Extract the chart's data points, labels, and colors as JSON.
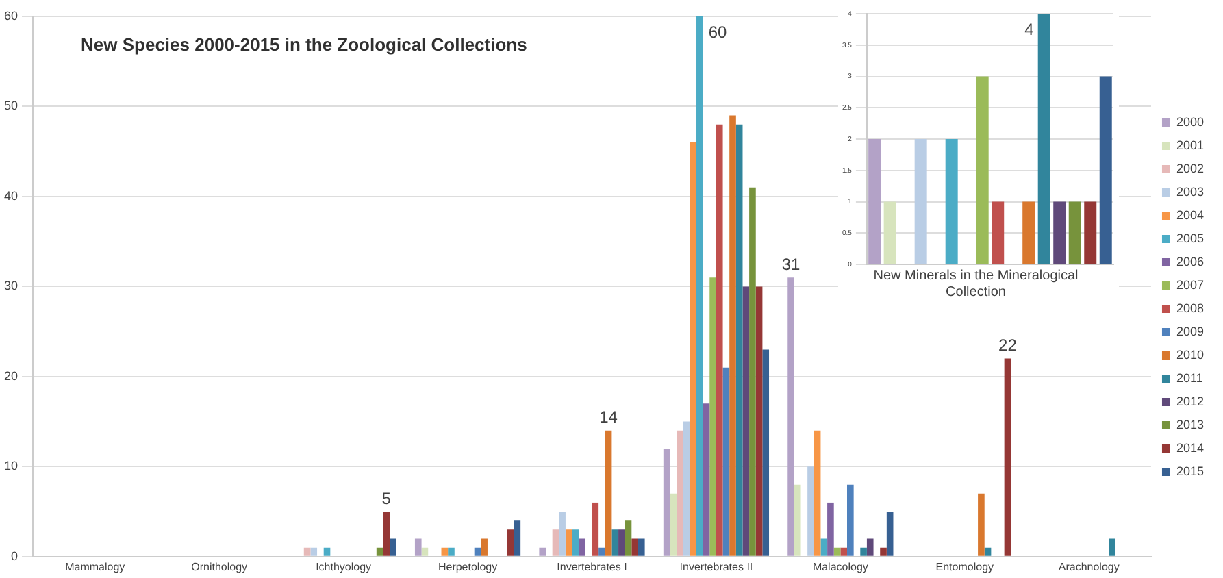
{
  "chart_data": [
    {
      "type": "bar",
      "title": "New Species 2000-2015 in the Zoological Collections",
      "categories": [
        "Mammalogy",
        "Ornithology",
        "Ichthyology",
        "Herpetology",
        "Invertebrates I",
        "Invertebrates II",
        "Malacology",
        "Entomology",
        "Arachnology"
      ],
      "series": [
        {
          "name": "2000",
          "color": "#b3a2c7",
          "values": [
            0,
            0,
            0,
            2,
            1,
            12,
            31,
            0,
            0
          ],
          "value_labels": [
            null,
            null,
            null,
            null,
            null,
            null,
            "31",
            null,
            null
          ]
        },
        {
          "name": "2001",
          "color": "#d7e4bd",
          "values": [
            0,
            0,
            0,
            1,
            0,
            7,
            8,
            0,
            0
          ]
        },
        {
          "name": "2002",
          "color": "#e6b9b8",
          "values": [
            0,
            0,
            1,
            0,
            3,
            14,
            0,
            0,
            0
          ]
        },
        {
          "name": "2003",
          "color": "#b9cde5",
          "values": [
            0,
            0,
            1,
            0,
            5,
            15,
            10,
            0,
            0
          ]
        },
        {
          "name": "2004",
          "color": "#f79646",
          "values": [
            0,
            0,
            0,
            1,
            3,
            46,
            14,
            0,
            0
          ]
        },
        {
          "name": "2005",
          "color": "#4bacc6",
          "values": [
            0,
            0,
            1,
            1,
            3,
            60,
            2,
            0,
            0
          ],
          "value_labels": [
            null,
            null,
            null,
            null,
            null,
            "60",
            null,
            null,
            null
          ]
        },
        {
          "name": "2006",
          "color": "#8064a2",
          "values": [
            0,
            0,
            0,
            0,
            2,
            17,
            6,
            0,
            0
          ]
        },
        {
          "name": "2007",
          "color": "#9bbb59",
          "values": [
            0,
            0,
            0,
            0,
            0,
            31,
            1,
            0,
            0
          ]
        },
        {
          "name": "2008",
          "color": "#c0504d",
          "values": [
            0,
            0,
            0,
            0,
            6,
            48,
            1,
            0,
            0
          ]
        },
        {
          "name": "2009",
          "color": "#4f81bd",
          "values": [
            0,
            0,
            0,
            1,
            1,
            21,
            8,
            0,
            0
          ]
        },
        {
          "name": "2010",
          "color": "#d9782e",
          "values": [
            0,
            0,
            0,
            2,
            14,
            49,
            0,
            7,
            0
          ],
          "value_labels": [
            null,
            null,
            null,
            null,
            "14",
            null,
            null,
            null,
            null
          ]
        },
        {
          "name": "2011",
          "color": "#31859c",
          "values": [
            0,
            0,
            0,
            0,
            3,
            48,
            1,
            1,
            2
          ]
        },
        {
          "name": "2012",
          "color": "#5f497a",
          "values": [
            0,
            0,
            0,
            0,
            3,
            30,
            2,
            0,
            0
          ]
        },
        {
          "name": "2013",
          "color": "#77933c",
          "values": [
            0,
            0,
            1,
            0,
            4,
            41,
            0,
            0,
            0
          ]
        },
        {
          "name": "2014",
          "color": "#953735",
          "values": [
            0,
            0,
            5,
            3,
            2,
            30,
            1,
            22,
            0
          ],
          "value_labels": [
            null,
            null,
            "5",
            null,
            null,
            null,
            null,
            "22",
            null
          ]
        },
        {
          "name": "2015",
          "color": "#376092",
          "values": [
            0,
            0,
            2,
            4,
            2,
            23,
            5,
            0,
            0
          ]
        }
      ],
      "ylim": [
        0,
        60
      ],
      "yticks": [
        0,
        10,
        20,
        30,
        40,
        50,
        60
      ],
      "grid": "y",
      "legend": "right"
    },
    {
      "type": "bar",
      "title": "New Minerals in the Mineralogical Collection",
      "categories": [
        null,
        null,
        null,
        null,
        null,
        null,
        null,
        null,
        null,
        null,
        null,
        null,
        null,
        null,
        null,
        null
      ],
      "values": [
        2,
        1,
        0,
        2,
        0,
        2,
        0,
        3,
        1,
        0,
        1,
        4,
        1,
        1,
        1,
        3
      ],
      "value_labels": [
        null,
        null,
        null,
        null,
        null,
        null,
        null,
        null,
        null,
        null,
        null,
        "4",
        null,
        null,
        null,
        null
      ],
      "colors": [
        "#b3a2c7",
        "#d7e4bd",
        "#e6b9b8",
        "#b9cde5",
        "#f79646",
        "#4bacc6",
        "#8064a2",
        "#9bbb59",
        "#c0504d",
        "#4f81bd",
        "#d9782e",
        "#31859c",
        "#5f497a",
        "#77933c",
        "#953735",
        "#376092"
      ],
      "ylim": [
        0,
        4
      ],
      "yticks": [
        0,
        0.5,
        1,
        1.5,
        2,
        2.5,
        3,
        3.5,
        4
      ],
      "grid": "y",
      "tick_labels": "y"
    }
  ]
}
